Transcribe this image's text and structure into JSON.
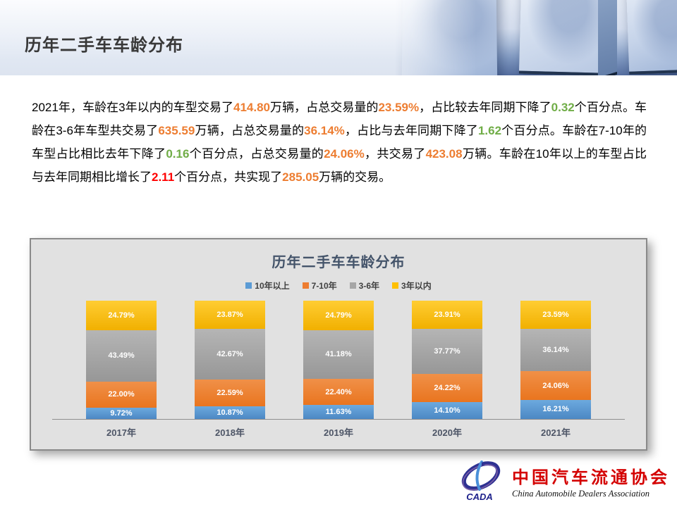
{
  "page": {
    "title": "历年二手车车龄分布"
  },
  "paragraph": {
    "segments": [
      {
        "text": "2021年，车龄在3年以内的车型交易了",
        "style": "normal"
      },
      {
        "text": "414.80",
        "style": "orange"
      },
      {
        "text": "万辆，占总交易量的",
        "style": "normal"
      },
      {
        "text": "23.59%",
        "style": "orange"
      },
      {
        "text": "，占比较去年同期下降了",
        "style": "normal"
      },
      {
        "text": "0.32",
        "style": "green"
      },
      {
        "text": "个百分点。车龄在3-6年车型共交易了",
        "style": "normal"
      },
      {
        "text": "635.59",
        "style": "orange"
      },
      {
        "text": "万辆，占总交易量的",
        "style": "normal"
      },
      {
        "text": "36.14%",
        "style": "orange"
      },
      {
        "text": "，占比与去年同期下降了",
        "style": "normal"
      },
      {
        "text": "1.62",
        "style": "green"
      },
      {
        "text": "个百分点。车龄在7-10年的车型占比相比去年下降了",
        "style": "normal"
      },
      {
        "text": "0.16",
        "style": "green"
      },
      {
        "text": "个百分点，占总交易量的",
        "style": "normal"
      },
      {
        "text": "24.06%",
        "style": "orange"
      },
      {
        "text": "，共交易了",
        "style": "normal"
      },
      {
        "text": "423.08",
        "style": "orange"
      },
      {
        "text": "万辆。车龄在10年以上的车型占比与去年同期相比增长了",
        "style": "normal"
      },
      {
        "text": "2.11",
        "style": "red"
      },
      {
        "text": "个百分点，共实现了",
        "style": "normal"
      },
      {
        "text": "285.05",
        "style": "orange"
      },
      {
        "text": "万辆的交易。",
        "style": "normal"
      }
    ]
  },
  "highlight_colors": {
    "orange": "#ED7D31",
    "green": "#70AD47",
    "red": "#FF0000"
  },
  "chart_data": {
    "type": "bar",
    "stacked": true,
    "title": "历年二手车车龄分布",
    "categories": [
      "2017年",
      "2018年",
      "2019年",
      "2020年",
      "2021年"
    ],
    "series": [
      {
        "name": "10年以上",
        "color": "#5B9BD5",
        "color_top": "#6CA9DE",
        "color_bottom": "#4C88C4",
        "values": [
          9.72,
          10.87,
          11.63,
          14.1,
          16.21
        ],
        "labels": [
          "9.72%",
          "10.87%",
          "11.63%",
          "14.10%",
          "16.21%"
        ]
      },
      {
        "name": "7-10年",
        "color": "#ED7D31",
        "color_top": "#F09048",
        "color_bottom": "#E9751F",
        "values": [
          22.0,
          22.59,
          22.4,
          24.22,
          24.06
        ],
        "labels": [
          "22.00%",
          "22.59%",
          "22.40%",
          "24.22%",
          "24.06%"
        ]
      },
      {
        "name": "3-6年",
        "color": "#A6A6A6",
        "color_top": "#B5B5B5",
        "color_bottom": "#979797",
        "values": [
          43.49,
          42.67,
          41.18,
          37.77,
          36.14
        ],
        "labels": [
          "43.49%",
          "42.67%",
          "41.18%",
          "37.77%",
          "36.14%"
        ]
      },
      {
        "name": "3年以内",
        "color": "#FFC000",
        "color_top": "#FFCD33",
        "color_bottom": "#F1B000",
        "values": [
          24.79,
          23.87,
          24.79,
          23.91,
          23.59
        ],
        "labels": [
          "24.79%",
          "23.87%",
          "24.79%",
          "23.91%",
          "23.59%"
        ]
      }
    ],
    "ylim": [
      0,
      100
    ],
    "value_format": "percent",
    "legend_position": "top",
    "grid": false
  },
  "logo": {
    "acronym": "CADA",
    "cn_name": "中国汽车流通协会",
    "en_name": "China Automobile Dealers Association"
  }
}
